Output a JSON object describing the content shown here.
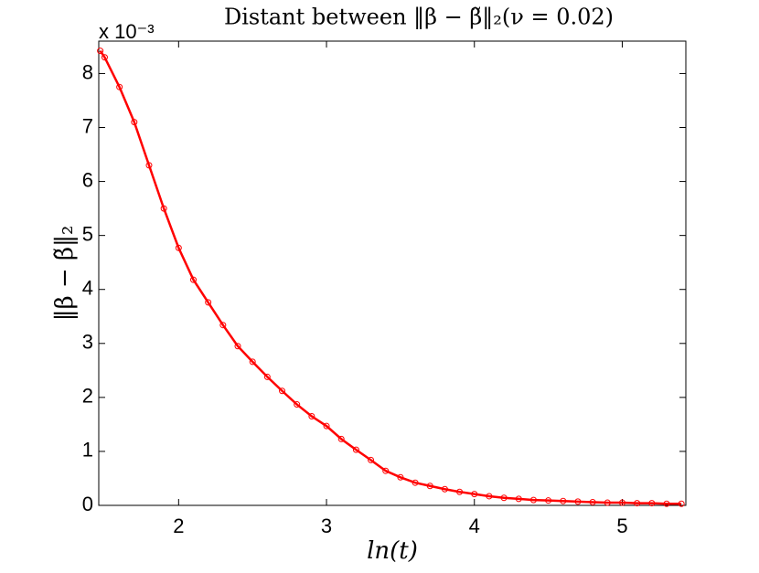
{
  "chart_data": {
    "type": "scatter",
    "title": "Distant between ‖β − β̃‖₂(ν = 0.02)",
    "y_multiplier": "x 10⁻³",
    "x_label": "ln(t)",
    "y_label": "‖β − β̃‖₂",
    "color": "#ff0000",
    "x": [
      1.47,
      1.5,
      1.6,
      1.7,
      1.8,
      1.9,
      2.0,
      2.1,
      2.2,
      2.3,
      2.4,
      2.5,
      2.6,
      2.7,
      2.8,
      2.9,
      3.0,
      3.1,
      3.2,
      3.3,
      3.4,
      3.5,
      3.6,
      3.7,
      3.8,
      3.9,
      4.0,
      4.1,
      4.2,
      4.3,
      4.4,
      4.5,
      4.6,
      4.7,
      4.8,
      4.9,
      5.0,
      5.1,
      5.2,
      5.3,
      5.4
    ],
    "values": [
      8.42,
      8.3,
      7.75,
      7.1,
      6.3,
      5.5,
      4.77,
      4.18,
      3.76,
      3.34,
      2.95,
      2.66,
      2.38,
      2.12,
      1.87,
      1.65,
      1.47,
      1.23,
      1.03,
      0.84,
      0.64,
      0.52,
      0.42,
      0.36,
      0.3,
      0.25,
      0.21,
      0.17,
      0.14,
      0.12,
      0.1,
      0.09,
      0.08,
      0.07,
      0.06,
      0.05,
      0.05,
      0.04,
      0.04,
      0.03,
      0.03
    ],
    "xlim": [
      1.46,
      5.43
    ],
    "ylim": [
      0,
      8.6
    ],
    "xticks": [
      2,
      3,
      4,
      5
    ],
    "yticks": [
      0,
      1,
      2,
      3,
      4,
      5,
      6,
      7,
      8
    ]
  }
}
